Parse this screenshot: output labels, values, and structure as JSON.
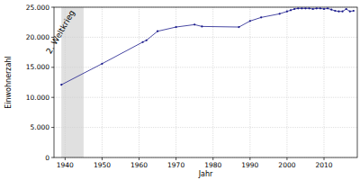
{
  "chart_data": {
    "type": "line",
    "x_label": "Jahr",
    "y_label": "Einwohnerzahl",
    "x": [
      1939,
      1950,
      1961,
      1962,
      1965,
      1970,
      1975,
      1977,
      1987,
      1990,
      1993,
      1998,
      2000,
      2001,
      2002,
      2003,
      2004,
      2005,
      2006,
      2007,
      2008,
      2009,
      2010,
      2011,
      2012,
      2013,
      2014,
      2015,
      2016,
      2017,
      2018
    ],
    "values": [
      12100,
      15600,
      19200,
      19500,
      21000,
      21700,
      22100,
      21800,
      21700,
      22700,
      23300,
      23900,
      24300,
      24500,
      24700,
      24800,
      24800,
      24800,
      24800,
      24700,
      24800,
      24800,
      24700,
      24800,
      24600,
      24400,
      24300,
      24300,
      24700,
      24300,
      24400
    ],
    "color": "#1a1a8c",
    "marker": "dot",
    "line_style": "solid",
    "xlim": [
      1937,
      2019
    ],
    "xticks": [
      1940,
      1950,
      1960,
      1970,
      1980,
      1990,
      2000,
      2010
    ],
    "ylim": [
      0,
      25000
    ],
    "yticks": [
      0,
      {
        "value": 5000,
        "label": "5.000"
      },
      {
        "value": 10000,
        "label": "10.000"
      },
      {
        "value": 15000,
        "label": "15.000"
      },
      {
        "value": 20000,
        "label": "20.000"
      },
      {
        "value": 25000,
        "label": "25.000"
      }
    ],
    "grid": true,
    "annotations": [
      {
        "label": "2. Weltkrieg",
        "x_start": 1939,
        "x_end": 1945
      }
    ]
  }
}
